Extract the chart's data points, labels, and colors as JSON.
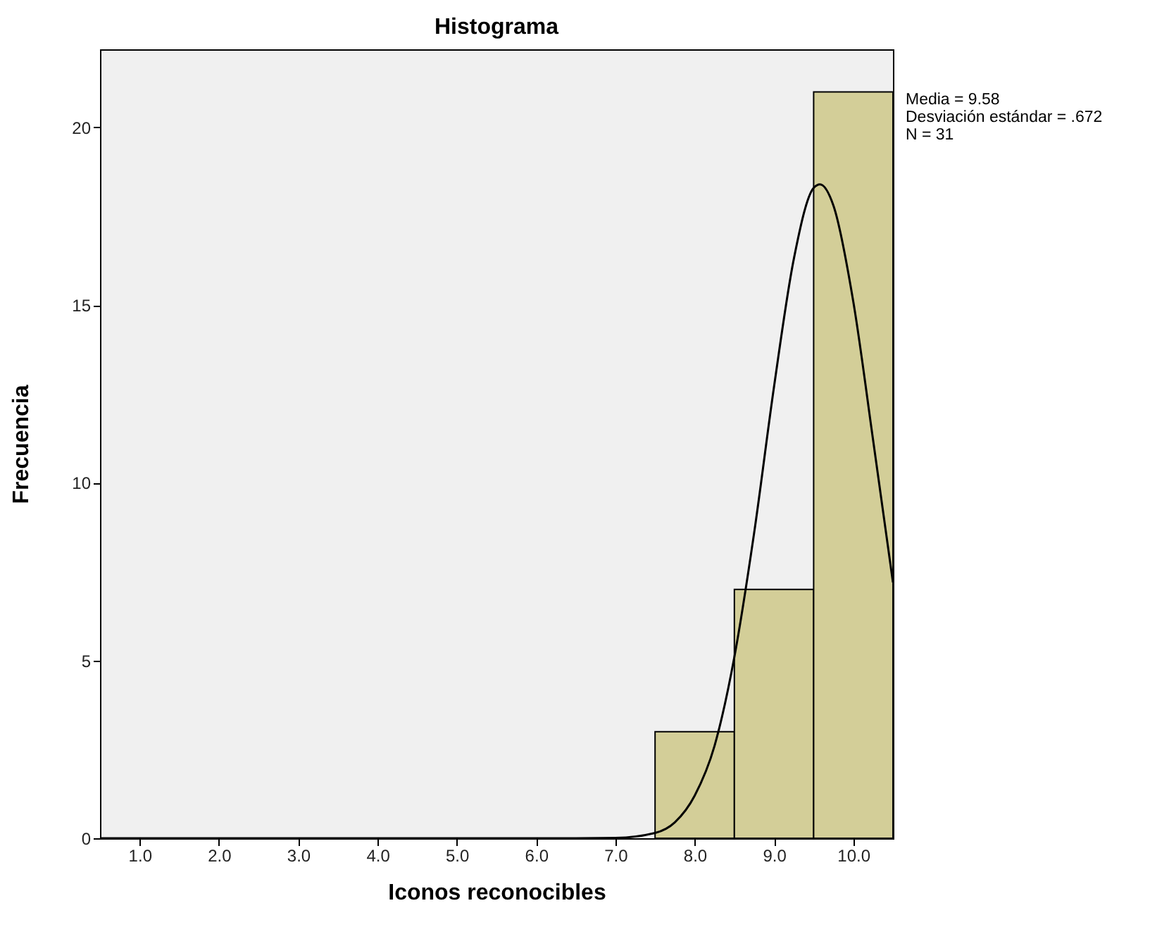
{
  "chart_data": {
    "type": "histogram",
    "title": "Histograma",
    "xlabel": "Iconos reconocibles",
    "ylabel": "Frecuencia",
    "bins": [
      7.5,
      8.5,
      9.5,
      10.5
    ],
    "values": [
      3,
      7,
      21
    ],
    "color": "#d3ce98",
    "series": [
      {
        "type": "line",
        "color": "#000000",
        "x": [
          0.5,
          6.5,
          7.0,
          7.5,
          7.75,
          8.0,
          8.25,
          8.5,
          8.75,
          9.0,
          9.25,
          9.5,
          9.58,
          9.75,
          10.0,
          10.25,
          10.5
        ],
        "values": [
          0,
          0,
          0.01,
          0.15,
          0.45,
          1.2,
          2.6,
          5.1,
          8.6,
          12.7,
          16.3,
          18.3,
          18.4,
          17.8,
          15.1,
          11.2,
          7.2
        ]
      }
    ],
    "xlim": [
      0.5,
      10.5
    ],
    "xticks": [
      {
        "value": 1,
        "label": "1.0"
      },
      {
        "value": 2,
        "label": "2.0"
      },
      {
        "value": 3,
        "label": "3.0"
      },
      {
        "value": 4,
        "label": "4.0"
      },
      {
        "value": 5,
        "label": "5.0"
      },
      {
        "value": 6,
        "label": "6.0"
      },
      {
        "value": 7,
        "label": "7.0"
      },
      {
        "value": 8,
        "label": "8.0"
      },
      {
        "value": 9,
        "label": "9.0"
      },
      {
        "value": 10,
        "label": "10.0"
      }
    ],
    "ylim": [
      0,
      22.2
    ],
    "yticks": [
      0,
      5,
      10,
      15,
      20
    ],
    "grid": false,
    "annotations": [
      "Media = 9.58",
      "Desviación estándar = .672",
      "N = 31"
    ]
  }
}
